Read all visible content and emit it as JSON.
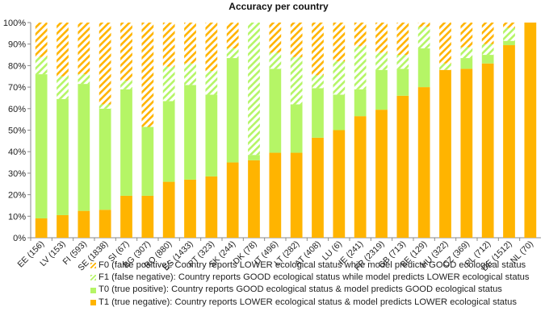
{
  "chart_data": {
    "type": "bar",
    "stacked": true,
    "title": "Accuracy per country",
    "xlabel": "",
    "ylabel": "",
    "ylim": [
      0,
      100
    ],
    "yticks": [
      "0%",
      "10%",
      "20%",
      "30%",
      "40%",
      "50%",
      "60%",
      "70%",
      "80%",
      "90%",
      "100%"
    ],
    "categories": [
      "EE (156)",
      "LV (153)",
      "FI (593)",
      "SE (1838)",
      "SI (67)",
      "BG (307)",
      "RO (880)",
      "ES (1433)",
      "PT (323)",
      "SK (244)",
      "DK (78)",
      "IT (496)",
      "LT (282)",
      "AT (408)",
      "LU (6)",
      "IE (241)",
      "FR (2319)",
      "GB (713)",
      "BE (129)",
      "HU (322)",
      "CZ (369)",
      "PL (712)",
      "DE (1512)",
      "NL (70)"
    ],
    "series": [
      {
        "key": "T1",
        "name": "T1 (true negative): Country reports LOWER ecological status & model predicts LOWER ecological status",
        "color": "#FFB400",
        "pattern": "solid",
        "values": [
          9,
          10.5,
          12.5,
          13,
          19.5,
          19.5,
          26,
          27,
          28.5,
          35,
          36,
          39.5,
          39.5,
          46.5,
          50,
          56.5,
          59.5,
          66,
          70,
          78,
          78.5,
          81,
          89.5,
          100
        ]
      },
      {
        "key": "T0",
        "name": "T0 (true positive): Country reports GOOD ecological status & model predicts GOOD ecological status",
        "color": "#B5F566",
        "pattern": "solid",
        "values": [
          67,
          54,
          59,
          47,
          49.5,
          32,
          37.5,
          44,
          38,
          48.5,
          2.5,
          39,
          22.5,
          23,
          16.5,
          12.5,
          18.5,
          12.5,
          18,
          0,
          5,
          4,
          2,
          0
        ]
      },
      {
        "key": "F1",
        "name": "F1 (false negative): Country reports GOOD ecological status while model predicts LOWER ecological status",
        "color": "#B5F566",
        "pattern": "hatch",
        "values": [
          8,
          10.5,
          4.5,
          2,
          4,
          0,
          16,
          10,
          11,
          4.5,
          61.5,
          7.5,
          22,
          6,
          15.5,
          20,
          8,
          6.5,
          10,
          3,
          5,
          5,
          6,
          0
        ]
      },
      {
        "key": "F0",
        "name": "F0 (false positive): Country reports LOWER ecological status while model predicts GOOD ecological status",
        "color": "#FFB400",
        "pattern": "hatch",
        "values": [
          16,
          25,
          24,
          38,
          27,
          48.5,
          20.5,
          19,
          22.5,
          12,
          0,
          14,
          16,
          24.5,
          18,
          11,
          14,
          15,
          2,
          19,
          11.5,
          10,
          2.5,
          0
        ]
      }
    ],
    "legend_order": [
      "F0",
      "F1",
      "T0",
      "T1"
    ],
    "legend_position": "bottom",
    "grid": false
  }
}
